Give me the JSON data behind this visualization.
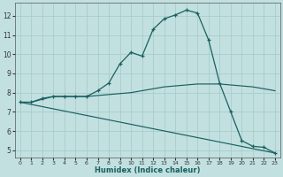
{
  "xlabel": "Humidex (Indice chaleur)",
  "bg_color": "#c2e0e0",
  "line_color": "#1a6060",
  "grid_color": "#a8cccc",
  "xlim": [
    -0.5,
    23.5
  ],
  "ylim": [
    4.6,
    12.7
  ],
  "xticks": [
    0,
    1,
    2,
    3,
    4,
    5,
    6,
    7,
    8,
    9,
    10,
    11,
    12,
    13,
    14,
    15,
    16,
    17,
    18,
    19,
    20,
    21,
    22,
    23
  ],
  "yticks": [
    5,
    6,
    7,
    8,
    9,
    10,
    11,
    12
  ],
  "curve_marker": {
    "x": [
      0,
      1,
      2,
      3,
      4,
      5,
      6,
      7,
      8,
      9,
      10,
      11,
      12,
      13,
      14,
      15,
      16,
      17,
      18,
      19,
      20,
      21,
      22,
      23
    ],
    "y": [
      7.5,
      7.5,
      7.7,
      7.8,
      7.8,
      7.8,
      7.8,
      8.1,
      8.5,
      9.5,
      10.1,
      9.9,
      11.3,
      11.85,
      12.05,
      12.3,
      12.15,
      10.75,
      8.5,
      7.0,
      5.5,
      5.2,
      5.15,
      4.85
    ]
  },
  "curve_upper": {
    "x": [
      0,
      1,
      2,
      3,
      4,
      5,
      6,
      7,
      8,
      9,
      10,
      11,
      12,
      13,
      14,
      15,
      16,
      17,
      18,
      19,
      20,
      21,
      22,
      23
    ],
    "y": [
      7.5,
      7.5,
      7.65,
      7.8,
      7.8,
      7.8,
      7.8,
      7.85,
      7.9,
      7.95,
      8.0,
      8.1,
      8.2,
      8.3,
      8.35,
      8.4,
      8.45,
      8.45,
      8.45,
      8.4,
      8.35,
      8.3,
      8.2,
      8.1
    ]
  },
  "curve_diag": {
    "x": [
      0,
      23
    ],
    "y": [
      7.5,
      4.85
    ]
  }
}
